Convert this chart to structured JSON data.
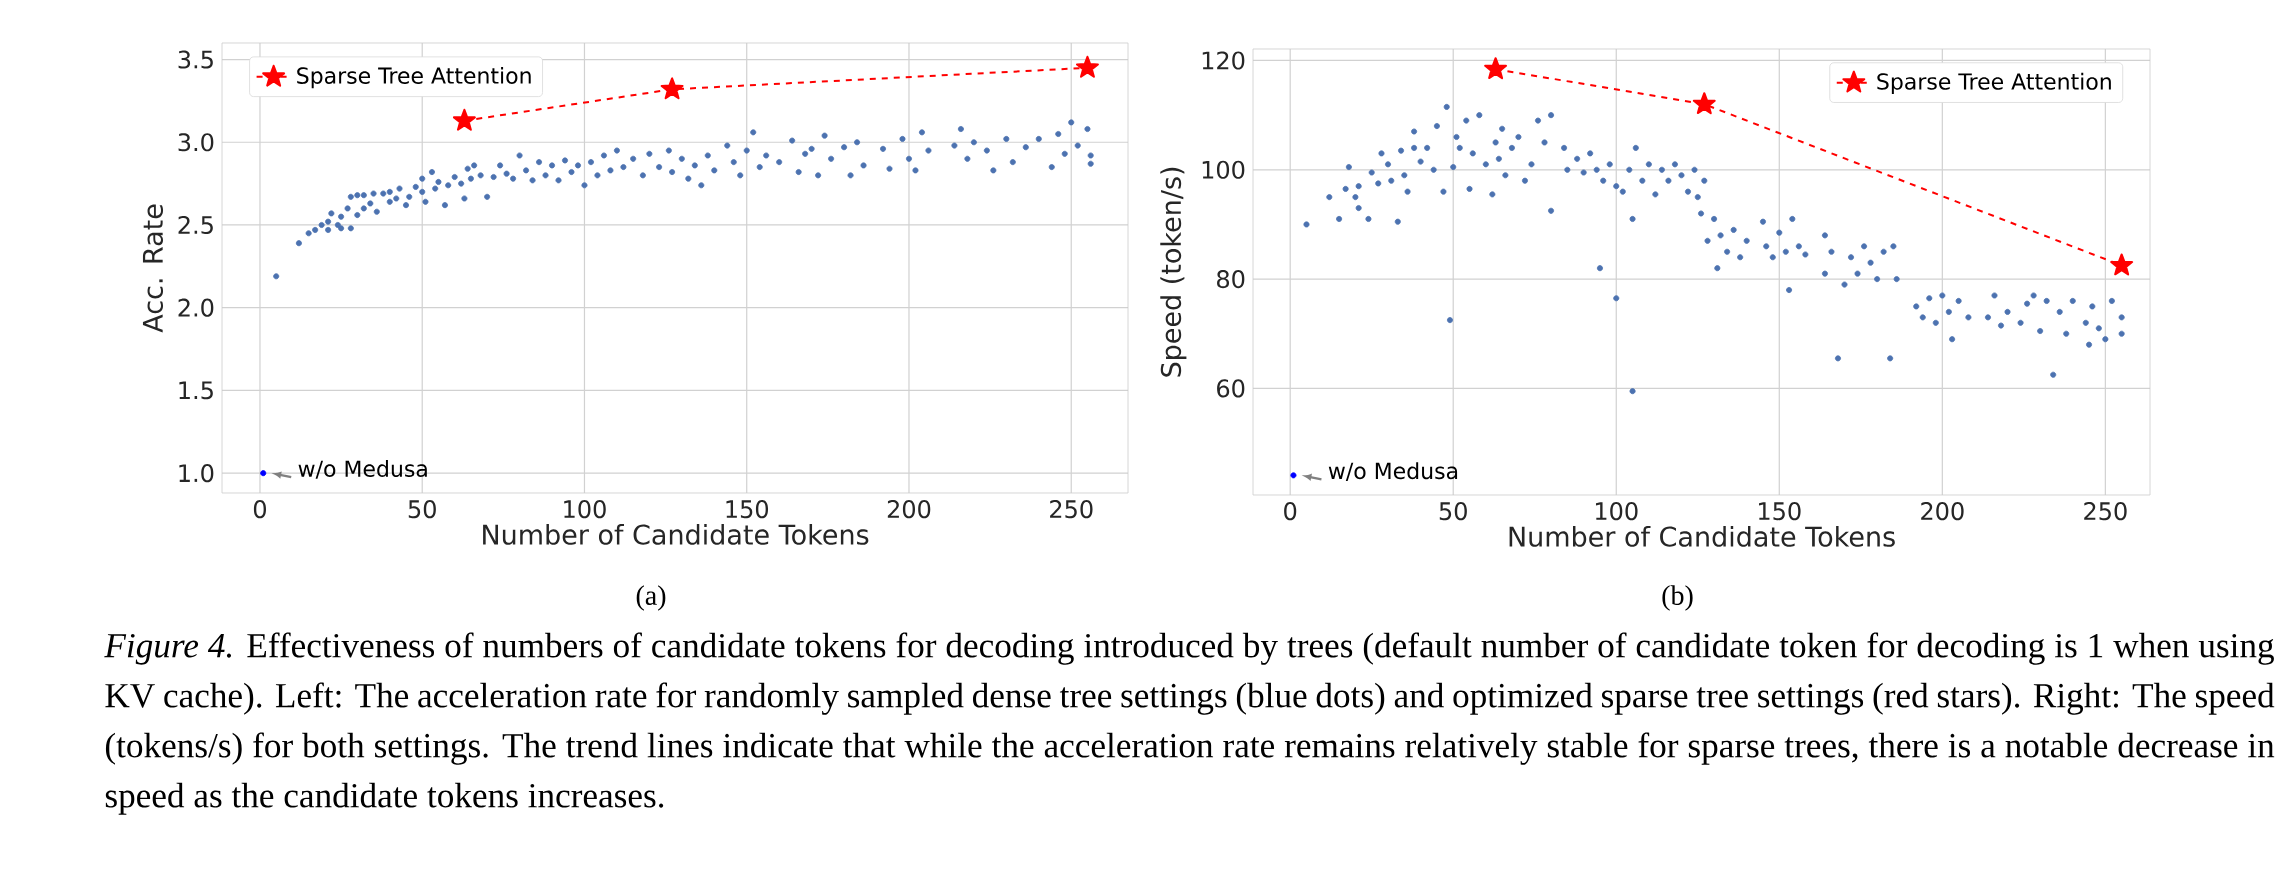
{
  "chart_data": [
    {
      "type": "scatter",
      "xlabel": "Number of Candidate Tokens",
      "ylabel": "Acc. Rate",
      "xlim": [
        -11.7,
        267.5
      ],
      "ylim": [
        0.88,
        3.6
      ],
      "xticks": [
        0,
        50,
        100,
        150,
        200,
        250
      ],
      "yticks": [
        {
          "value": 1.0,
          "label": "1.0"
        },
        {
          "value": 1.5,
          "label": "1.5"
        },
        {
          "value": 2.0,
          "label": "2.0"
        },
        {
          "value": 2.5,
          "label": "2.5"
        },
        {
          "value": 3.0,
          "label": "3.0"
        },
        {
          "value": 3.5,
          "label": "3.5"
        }
      ],
      "grid": true,
      "legend": "top left",
      "series": [
        {
          "color": "#4c72b0",
          "marker": "circle",
          "x": [
            5,
            12,
            15,
            17,
            19,
            21,
            21,
            22,
            24,
            25,
            25,
            27,
            28,
            28,
            30,
            30,
            32,
            32,
            34,
            35,
            36,
            38,
            40,
            40,
            42,
            43,
            45,
            46,
            48,
            50,
            50,
            51,
            53,
            54,
            55,
            57,
            58,
            60,
            62,
            63,
            64,
            65,
            66,
            68,
            70,
            72,
            74,
            76,
            78,
            80,
            82,
            84,
            86,
            88,
            90,
            92,
            94,
            96,
            98,
            100,
            102,
            104,
            106,
            108,
            110,
            112,
            115,
            118,
            120,
            123,
            126,
            127,
            130,
            132,
            134,
            136,
            138,
            140,
            144,
            146,
            148,
            150,
            152,
            154,
            156,
            160,
            164,
            166,
            168,
            170,
            172,
            174,
            176,
            180,
            182,
            184,
            186,
            192,
            194,
            198,
            200,
            202,
            204,
            206,
            214,
            216,
            218,
            220,
            224,
            226,
            230,
            232,
            236,
            240,
            244,
            246,
            248,
            250,
            252,
            255,
            256,
            256
          ],
          "values": [
            2.19,
            2.39,
            2.45,
            2.47,
            2.5,
            2.52,
            2.47,
            2.57,
            2.5,
            2.48,
            2.55,
            2.6,
            2.67,
            2.48,
            2.68,
            2.56,
            2.68,
            2.6,
            2.63,
            2.69,
            2.58,
            2.69,
            2.7,
            2.64,
            2.66,
            2.72,
            2.62,
            2.67,
            2.73,
            2.7,
            2.78,
            2.64,
            2.82,
            2.72,
            2.76,
            2.62,
            2.74,
            2.79,
            2.75,
            2.66,
            2.84,
            2.78,
            2.86,
            2.8,
            2.67,
            2.79,
            2.86,
            2.81,
            2.78,
            2.92,
            2.83,
            2.77,
            2.88,
            2.8,
            2.86,
            2.77,
            2.89,
            2.82,
            2.86,
            2.74,
            2.88,
            2.8,
            2.92,
            2.83,
            2.95,
            2.85,
            2.9,
            2.8,
            2.93,
            2.85,
            2.95,
            2.82,
            2.9,
            2.78,
            2.86,
            2.74,
            2.92,
            2.83,
            2.98,
            2.88,
            2.8,
            2.95,
            3.06,
            2.85,
            2.92,
            2.88,
            3.01,
            2.82,
            2.93,
            2.96,
            2.8,
            3.04,
            2.9,
            2.97,
            2.8,
            3.0,
            2.86,
            2.96,
            2.84,
            3.02,
            2.9,
            2.83,
            3.06,
            2.95,
            2.98,
            3.08,
            2.9,
            3.0,
            2.95,
            2.83,
            3.02,
            2.88,
            2.97,
            3.02,
            2.85,
            3.05,
            2.93,
            3.12,
            2.98,
            3.08,
            2.87,
            2.92
          ]
        },
        {
          "color": "#0000ff",
          "marker": "circle",
          "x": [
            1
          ],
          "values": [
            1.0
          ]
        },
        {
          "name": "Sparse Tree Attention",
          "type": "line",
          "color": "#ff0000",
          "marker": "star",
          "line_style": "dashed",
          "x": [
            63,
            127,
            255
          ],
          "values": [
            3.13,
            3.32,
            3.45
          ]
        }
      ],
      "annotations": [
        {
          "text": "w/o Medusa",
          "x": 1,
          "y": 1.0
        },
        "(a)",
        "*Figure 4.* Effectiveness of numbers of candidate tokens for decoding introduced by trees (default number of candidate token for decoding is 1 when using KV cache). Left: The acceleration rate for randomly sampled dense tree settings (blue dots) and optimized sparse tree settings (red stars). Right: The speed (tokens/s) for both settings. The trend lines indicate that while the acceleration rate remains relatively stable for sparse trees, there is a notable decrease in speed as the candidate tokens increases."
      ]
    },
    {
      "type": "scatter",
      "xlabel": "Number of Candidate Tokens",
      "ylabel": "Speed (token/s)",
      "xlim": [
        -11.4,
        263.7
      ],
      "ylim": [
        40.5,
        122.1
      ],
      "xticks": [
        0,
        50,
        100,
        150,
        200,
        250
      ],
      "yticks": [
        60,
        80,
        100,
        120
      ],
      "grid": true,
      "legend": "top right",
      "series": [
        {
          "color": "#4c72b0",
          "marker": "circle",
          "x": [
            5,
            12,
            15,
            17,
            18,
            20,
            21,
            21,
            24,
            25,
            27,
            28,
            30,
            31,
            33,
            34,
            35,
            36,
            38,
            38,
            40,
            42,
            44,
            45,
            47,
            48,
            49,
            50,
            51,
            52,
            54,
            55,
            56,
            58,
            60,
            62,
            63,
            64,
            65,
            66,
            68,
            70,
            72,
            74,
            76,
            78,
            80,
            80,
            84,
            85,
            88,
            90,
            92,
            94,
            95,
            96,
            98,
            100,
            100,
            102,
            104,
            105,
            105,
            106,
            108,
            110,
            112,
            114,
            116,
            118,
            120,
            122,
            124,
            125,
            126,
            127,
            128,
            130,
            131,
            132,
            134,
            136,
            138,
            140,
            145,
            146,
            148,
            150,
            152,
            153,
            154,
            156,
            158,
            164,
            164,
            166,
            168,
            170,
            172,
            174,
            176,
            178,
            180,
            182,
            184,
            185,
            186,
            192,
            194,
            196,
            198,
            200,
            202,
            203,
            205,
            208,
            214,
            216,
            218,
            220,
            224,
            226,
            228,
            230,
            232,
            234,
            236,
            238,
            240,
            244,
            245,
            246,
            248,
            250,
            252,
            255,
            255
          ],
          "values": [
            90,
            95,
            91,
            96.5,
            100.5,
            95,
            97,
            93,
            91,
            99.5,
            97.5,
            103,
            101,
            98,
            90.5,
            103.5,
            99,
            96,
            104,
            107,
            101.5,
            104,
            100,
            108,
            96,
            111.5,
            72.5,
            100.5,
            106,
            104,
            109,
            96.5,
            103,
            110,
            101,
            95.5,
            105,
            102,
            107.5,
            99,
            104,
            106,
            98,
            101,
            109,
            105,
            110,
            92.5,
            104,
            100,
            102,
            99.5,
            103,
            100,
            82,
            98,
            101,
            76.5,
            97,
            96,
            100,
            59.5,
            91,
            104,
            98,
            101,
            95.5,
            100,
            98,
            101,
            99,
            96,
            100,
            95,
            92,
            98,
            87,
            91,
            82,
            88,
            85,
            89,
            84,
            87,
            90.5,
            86,
            84,
            88.5,
            85,
            78,
            91,
            86,
            84.5,
            88,
            81,
            85,
            65.5,
            79,
            84,
            81,
            86,
            83,
            80,
            85,
            65.5,
            86,
            80,
            75,
            73,
            76.5,
            72,
            77,
            74,
            69,
            76,
            73,
            73,
            77,
            71.5,
            74,
            72,
            75.5,
            77,
            70.5,
            76,
            62.5,
            74,
            70,
            76,
            72,
            68,
            75,
            71,
            69,
            76,
            70,
            73
          ]
        },
        {
          "color": "#0000ff",
          "marker": "circle",
          "x": [
            1
          ],
          "values": [
            44.1
          ]
        },
        {
          "name": "Sparse Tree Attention",
          "type": "line",
          "color": "#ff0000",
          "marker": "star",
          "line_style": "dashed",
          "x": [
            63,
            127,
            255
          ],
          "values": [
            118.4,
            112,
            82.5
          ]
        }
      ],
      "annotations": [
        {
          "text": "w/o Medusa",
          "x": 1,
          "y": 44.1
        },
        "(b)"
      ]
    }
  ]
}
